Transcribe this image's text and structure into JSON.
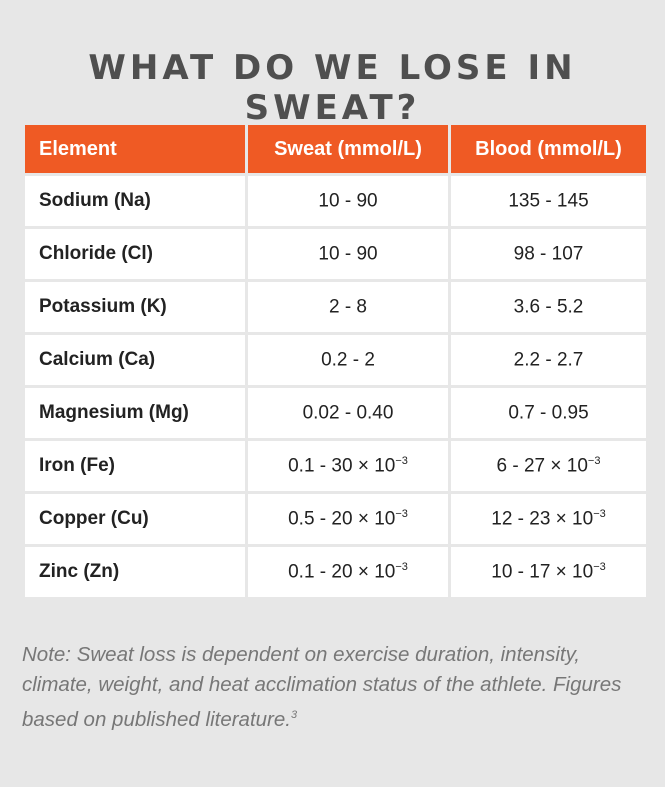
{
  "title": "WHAT DO WE LOSE IN SWEAT?",
  "colors": {
    "header_bg": "#ef5a24",
    "background": "#e7e7e7",
    "cell_bg": "#ffffff"
  },
  "table": {
    "headers": [
      "Element",
      "Sweat (mmol/L)",
      "Blood (mmol/L)"
    ],
    "rows": [
      {
        "element": "Sodium (Na)",
        "sweat": "10 - 90",
        "sweat_exp": "",
        "blood": "135 - 145",
        "blood_exp": ""
      },
      {
        "element": "Chloride (Cl)",
        "sweat": "10 - 90",
        "sweat_exp": "",
        "blood": "98 - 107",
        "blood_exp": ""
      },
      {
        "element": "Potassium (K)",
        "sweat": "2 - 8",
        "sweat_exp": "",
        "blood": "3.6 - 5.2",
        "blood_exp": ""
      },
      {
        "element": "Calcium (Ca)",
        "sweat": "0.2 - 2",
        "sweat_exp": "",
        "blood": "2.2 - 2.7",
        "blood_exp": ""
      },
      {
        "element": "Magnesium (Mg)",
        "sweat": "0.02 - 0.40",
        "sweat_exp": "",
        "blood": "0.7 - 0.95",
        "blood_exp": ""
      },
      {
        "element": "Iron (Fe)",
        "sweat": "0.1 - 30 × 10",
        "sweat_exp": "−3",
        "blood": "6 - 27 × 10",
        "blood_exp": "−3"
      },
      {
        "element": "Copper (Cu)",
        "sweat": "0.5 - 20 × 10",
        "sweat_exp": "−3",
        "blood": "12 - 23 × 10",
        "blood_exp": "−3"
      },
      {
        "element": "Zinc (Zn)",
        "sweat": "0.1 - 20 × 10",
        "sweat_exp": "−3",
        "blood": "10 - 17 × 10",
        "blood_exp": "−3"
      }
    ]
  },
  "note": {
    "text": "Note: Sweat loss is dependent on exercise duration, intensity, climate, weight, and heat acclimation status of the athlete. Figures based on published literature.",
    "ref": "3"
  }
}
